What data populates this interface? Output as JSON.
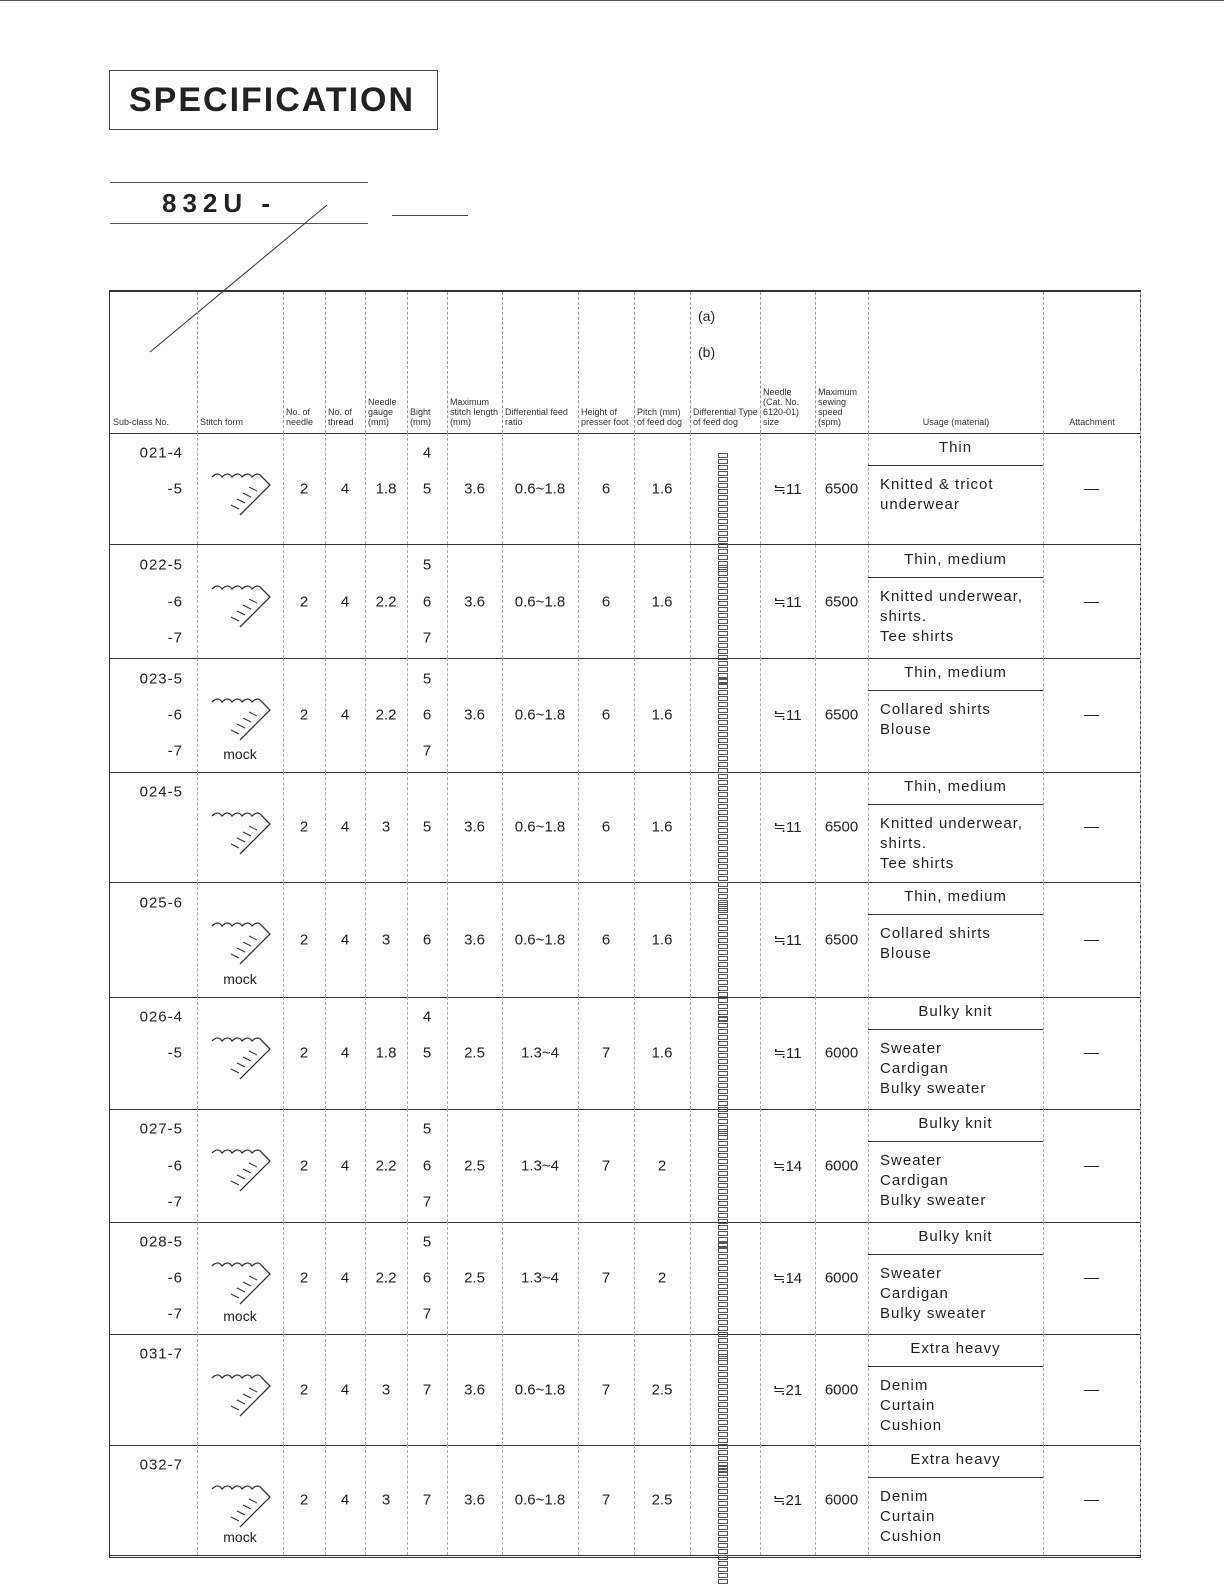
{
  "title": "SPECIFICATION",
  "model": "832U -",
  "headers": {
    "subclass": "Sub-class No.",
    "stitch_form": "Stitch form",
    "needles": "No. of needle",
    "threads": "No. of thread",
    "gauge": "Needle gauge (mm)",
    "bight": "Bight (mm)",
    "stitch_length": "Maximum stitch length (mm)",
    "diff_ratio": "Differential feed ratio",
    "presser": "Height of presser foot",
    "pitch": "Pitch (mm) of feed dog",
    "diff_type": "Differential Type of feed dog",
    "diff_a": "(a)",
    "diff_b": "(b)",
    "needle_size": "Needle (Cat. No. 6120-01) size",
    "speed": "Maximum sewing speed (spm)",
    "usage": "Usage (material)",
    "attachment": "Attachment"
  },
  "rows": [
    {
      "subclass": [
        "021-4",
        "-5"
      ],
      "mock": "",
      "needles": "2",
      "threads": "4",
      "gauge": "1.8",
      "bight": [
        "4",
        "5"
      ],
      "stitch_length": "3.6",
      "diff_ratio": "0.6~1.8",
      "presser": "6",
      "pitch": "1.6",
      "needle_size": "≒11",
      "speed": "6500",
      "usage_title": "Thin",
      "usage_body": "Knitted & tricot\nunderwear",
      "attachment": "—"
    },
    {
      "subclass": [
        "022-5",
        "-6",
        "-7"
      ],
      "mock": "",
      "needles": "2",
      "threads": "4",
      "gauge": "2.2",
      "bight": [
        "5",
        "6",
        "7"
      ],
      "stitch_length": "3.6",
      "diff_ratio": "0.6~1.8",
      "presser": "6",
      "pitch": "1.6",
      "needle_size": "≒11",
      "speed": "6500",
      "usage_title": "Thin, medium",
      "usage_body": "Knitted underwear,\nshirts.\nTee shirts",
      "attachment": "—"
    },
    {
      "subclass": [
        "023-5",
        "-6",
        "-7"
      ],
      "mock": "mock",
      "needles": "2",
      "threads": "4",
      "gauge": "2.2",
      "bight": [
        "5",
        "6",
        "7"
      ],
      "stitch_length": "3.6",
      "diff_ratio": "0.6~1.8",
      "presser": "6",
      "pitch": "1.6",
      "needle_size": "≒11",
      "speed": "6500",
      "usage_title": "Thin, medium",
      "usage_body": "Collared shirts\nBlouse",
      "attachment": "—"
    },
    {
      "subclass": [
        "024-5"
      ],
      "mock": "",
      "needles": "2",
      "threads": "4",
      "gauge": "3",
      "bight": [
        "5"
      ],
      "stitch_length": "3.6",
      "diff_ratio": "0.6~1.8",
      "presser": "6",
      "pitch": "1.6",
      "needle_size": "≒11",
      "speed": "6500",
      "usage_title": "Thin, medium",
      "usage_body": "Knitted underwear,\nshirts.\nTee shirts",
      "attachment": "—"
    },
    {
      "subclass": [
        "025-6"
      ],
      "mock": "mock",
      "needles": "2",
      "threads": "4",
      "gauge": "3",
      "bight": [
        "6"
      ],
      "stitch_length": "3.6",
      "diff_ratio": "0.6~1.8",
      "presser": "6",
      "pitch": "1.6",
      "needle_size": "≒11",
      "speed": "6500",
      "usage_title": "Thin, medium",
      "usage_body": "Collared shirts\nBlouse",
      "attachment": "—"
    },
    {
      "subclass": [
        "026-4",
        "-5"
      ],
      "mock": "",
      "needles": "2",
      "threads": "4",
      "gauge": "1.8",
      "bight": [
        "4",
        "5"
      ],
      "stitch_length": "2.5",
      "diff_ratio": "1.3~4",
      "presser": "7",
      "pitch": "1.6",
      "needle_size": "≒11",
      "speed": "6000",
      "usage_title": "Bulky knit",
      "usage_body": "Sweater\nCardigan\nBulky sweater",
      "attachment": "—"
    },
    {
      "subclass": [
        "027-5",
        "-6",
        "-7"
      ],
      "mock": "",
      "needles": "2",
      "threads": "4",
      "gauge": "2.2",
      "bight": [
        "5",
        "6",
        "7"
      ],
      "stitch_length": "2.5",
      "diff_ratio": "1.3~4",
      "presser": "7",
      "pitch": "2",
      "needle_size": "≒14",
      "speed": "6000",
      "usage_title": "Bulky knit",
      "usage_body": "Sweater\nCardigan\nBulky sweater",
      "attachment": "—"
    },
    {
      "subclass": [
        "028-5",
        "-6",
        "-7"
      ],
      "mock": "mock",
      "needles": "2",
      "threads": "4",
      "gauge": "2.2",
      "bight": [
        "5",
        "6",
        "7"
      ],
      "stitch_length": "2.5",
      "diff_ratio": "1.3~4",
      "presser": "7",
      "pitch": "2",
      "needle_size": "≒14",
      "speed": "6000",
      "usage_title": "Bulky knit",
      "usage_body": "Sweater\nCardigan\nBulky sweater",
      "attachment": "—"
    },
    {
      "subclass": [
        "031-7"
      ],
      "mock": "",
      "needles": "2",
      "threads": "4",
      "gauge": "3",
      "bight": [
        "7"
      ],
      "stitch_length": "3.6",
      "diff_ratio": "0.6~1.8",
      "presser": "7",
      "pitch": "2.5",
      "needle_size": "≒21",
      "speed": "6000",
      "usage_title": "Extra heavy",
      "usage_body": "Denim\nCurtain\nCushion",
      "attachment": "—"
    },
    {
      "subclass": [
        "032-7"
      ],
      "mock": "mock",
      "needles": "2",
      "threads": "4",
      "gauge": "3",
      "bight": [
        "7"
      ],
      "stitch_length": "3.6",
      "diff_ratio": "0.6~1.8",
      "presser": "7",
      "pitch": "2.5",
      "needle_size": "≒21",
      "speed": "6000",
      "usage_title": "Extra heavy",
      "usage_body": "Denim\nCurtain\nCushion",
      "attachment": "—"
    }
  ]
}
